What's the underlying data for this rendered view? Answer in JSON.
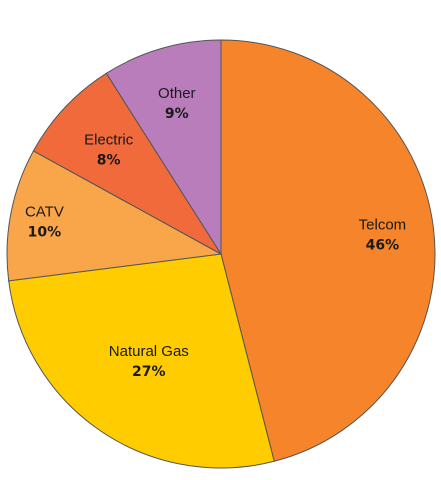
{
  "chart_data": {
    "type": "pie",
    "slices": [
      {
        "name": "Telcom",
        "value": 46,
        "label": "46%",
        "color": "#F5842A"
      },
      {
        "name": "Natural Gas",
        "value": 27,
        "label": "27%",
        "color": "#FFCC00"
      },
      {
        "name": "CATV",
        "value": 10,
        "label": "10%",
        "color": "#F9A64A"
      },
      {
        "name": "Electric",
        "value": 8,
        "label": "8%",
        "color": "#F06A3C"
      },
      {
        "name": "Other",
        "value": 9,
        "label": "9%",
        "color": "#B97DBB"
      }
    ],
    "legend": "none",
    "start": "12 o'clock, clockwise"
  }
}
